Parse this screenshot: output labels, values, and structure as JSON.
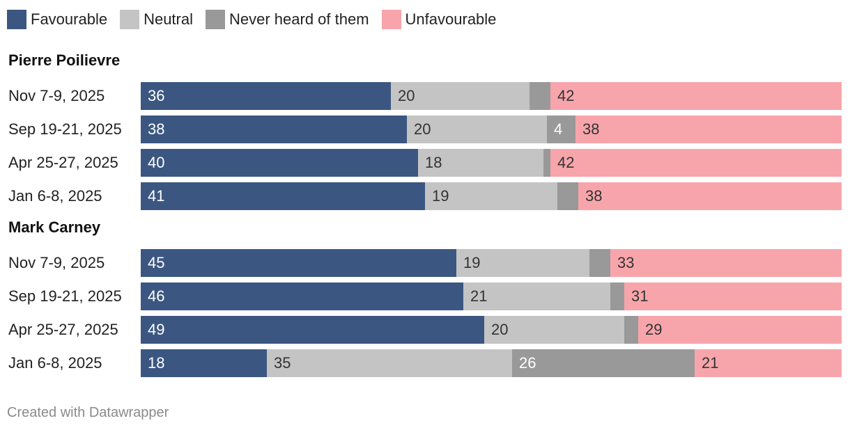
{
  "chart_data": {
    "type": "stacked-bar-horizontal",
    "series": [
      {
        "name": "Favourable",
        "color": "#3b5781",
        "label_color": "#ffffff"
      },
      {
        "name": "Neutral",
        "color": "#c4c4c4",
        "label_color": "#333333"
      },
      {
        "name": "Never heard of them",
        "color": "#999999",
        "label_color": "#ffffff"
      },
      {
        "name": "Unfavourable",
        "color": "#f7a5ab",
        "label_color": "#333333"
      }
    ],
    "groups": [
      {
        "title": "Pierre Poilievre",
        "rows": [
          {
            "label": "Nov 7-9, 2025",
            "values": [
              36,
              20,
              3,
              42
            ]
          },
          {
            "label": "Sep 19-21, 2025",
            "values": [
              38,
              20,
              4,
              38
            ]
          },
          {
            "label": "Apr 25-27, 2025",
            "values": [
              40,
              18,
              1,
              42
            ]
          },
          {
            "label": "Jan 6-8, 2025",
            "values": [
              41,
              19,
              3,
              38
            ]
          }
        ]
      },
      {
        "title": "Mark Carney",
        "rows": [
          {
            "label": "Nov 7-9, 2025",
            "values": [
              45,
              19,
              3,
              33
            ]
          },
          {
            "label": "Sep 19-21, 2025",
            "values": [
              46,
              21,
              2,
              31
            ]
          },
          {
            "label": "Apr 25-27, 2025",
            "values": [
              49,
              20,
              2,
              29
            ]
          },
          {
            "label": "Jan 6-8, 2025",
            "values": [
              18,
              35,
              26,
              21
            ]
          }
        ]
      }
    ],
    "shown_labels": {
      "Pierre Poilievre": [
        [
          "36",
          "20",
          "",
          "42"
        ],
        [
          "38",
          "20",
          "4",
          "38"
        ],
        [
          "40",
          "18",
          "",
          "42"
        ],
        [
          "41",
          "19",
          "",
          "38"
        ]
      ],
      "Mark Carney": [
        [
          "45",
          "19",
          "",
          "33"
        ],
        [
          "46",
          "21",
          "",
          "31"
        ],
        [
          "49",
          "20",
          "",
          "29"
        ],
        [
          "18",
          "35",
          "26",
          "21"
        ]
      ]
    },
    "total": 100
  },
  "footer": "Created with Datawrapper"
}
